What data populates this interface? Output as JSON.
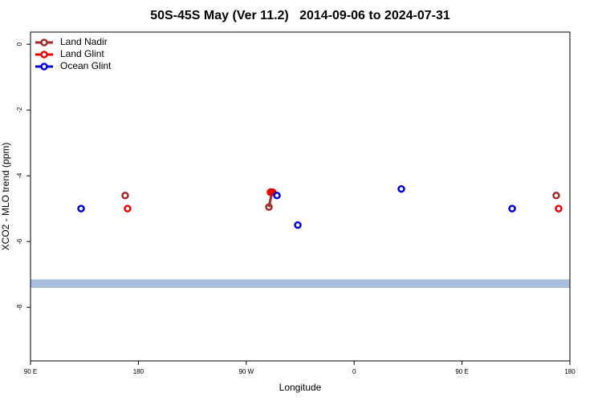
{
  "chart_data": {
    "type": "scatter",
    "title": "50S-45S May (Ver 11.2)   2014-09-06 to 2024-07-31",
    "xlabel": "Longitude",
    "ylabel": "XCO2 - MLO trend (ppm)",
    "xlim": [
      90,
      540
    ],
    "ylim": [
      -9.63,
      0.37
    ],
    "xticks": [
      {
        "value": 90,
        "label": "90 E"
      },
      {
        "value": 180,
        "label": "180"
      },
      {
        "value": 270,
        "label": "90 W"
      },
      {
        "value": 360,
        "label": "0"
      },
      {
        "value": 450,
        "label": "90 E"
      },
      {
        "value": 540,
        "label": "180"
      }
    ],
    "yticks": [
      0,
      -2,
      -4,
      -6,
      -8
    ],
    "legend": "top-left",
    "band": {
      "range": [
        -7.41,
        -7.15
      ],
      "color": "#a7bedc"
    },
    "series": [
      {
        "name": "Land Nadir",
        "color": "#a52a2a",
        "x": [
          169,
          288.9,
          291.5,
          528.6
        ],
        "values": [
          -4.6,
          -4.95,
          -4.5,
          -4.6
        ]
      },
      {
        "name": "Land Glint",
        "color": "#ee0000",
        "x": [
          171,
          290.2,
          292,
          530.6
        ],
        "values": [
          -5.0,
          -4.5,
          -4.5,
          -5.0
        ]
      },
      {
        "name": "Ocean Glint",
        "color": "#0000dd",
        "x": [
          132.2,
          295.6,
          313,
          399.4,
          491.8
        ],
        "values": [
          -5.0,
          -4.6,
          -5.5,
          -4.4,
          -5.0
        ]
      }
    ]
  }
}
